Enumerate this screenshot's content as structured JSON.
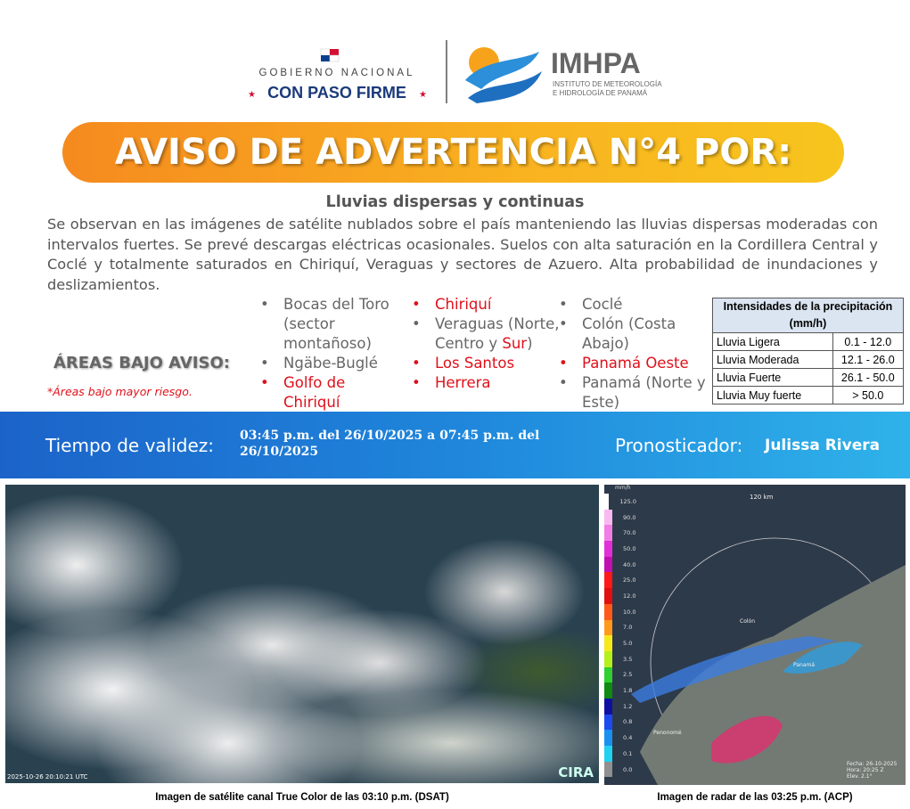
{
  "header": {
    "gov_line1": "GOBIERNO NACIONAL",
    "gov_line2": "CON PASO FIRME",
    "org_name": "IMHPA",
    "org_line1": "INSTITUTO DE METEOROLOGÍA",
    "org_line2": "E HIDROLOGÍA DE PANAMÁ"
  },
  "banner": {
    "title": "AVISO DE ADVERTENCIA N°4 POR:"
  },
  "subtitle": "Lluvias dispersas y continuas",
  "body": "Se observan en las imágenes de satélite nublados sobre el país manteniendo las lluvias dispersas moderadas con intervalos fuertes. Se prevé descargas eléctricas ocasionales. Suelos con alta saturación en la Cordillera Central y Coclé y totalmente saturados en Chiriquí, Veraguas y sectores de Azuero. Alta probabilidad de inundaciones  y deslizamientos.",
  "areas": {
    "label": "ÁREAS BAJO AVISO:",
    "note": "*Áreas bajo mayor riesgo.",
    "columns": [
      {
        "items": [
          {
            "parts": [
              {
                "text": "Bocas del Toro (sector montañoso)",
                "risk": false
              }
            ]
          },
          {
            "parts": [
              {
                "text": "Ngäbe-Buglé",
                "risk": false
              }
            ]
          },
          {
            "parts": [
              {
                "text": "Golfo de Chiriquí",
                "risk": true
              }
            ]
          }
        ]
      },
      {
        "items": [
          {
            "parts": [
              {
                "text": "Chiriquí",
                "risk": true
              }
            ]
          },
          {
            "parts": [
              {
                "text": "Veraguas (Norte, Centro y ",
                "risk": false
              },
              {
                "text": "Sur",
                "risk": true
              },
              {
                "text": ")",
                "risk": false
              }
            ]
          },
          {
            "parts": [
              {
                "text": "Los Santos",
                "risk": true
              }
            ]
          },
          {
            "parts": [
              {
                "text": "Herrera",
                "risk": true
              }
            ]
          }
        ]
      },
      {
        "items": [
          {
            "parts": [
              {
                "text": "Coclé",
                "risk": false
              }
            ]
          },
          {
            "parts": [
              {
                "text": "Colón (Costa Abajo)",
                "risk": false
              }
            ]
          },
          {
            "parts": [
              {
                "text": "Panamá Oeste",
                "risk": true
              }
            ]
          },
          {
            "parts": [
              {
                "text": "Panamá (Norte y Este)",
                "risk": false
              }
            ]
          }
        ]
      }
    ]
  },
  "table": {
    "header": "Intensidades de la precipitación (mm/h)",
    "rows": [
      [
        "Lluvia Ligera",
        "0.1 - 12.0"
      ],
      [
        "Lluvia Moderada",
        "12.1 - 26.0"
      ],
      [
        "Lluvia Fuerte",
        "26.1 - 50.0"
      ],
      [
        "Lluvia Muy fuerte",
        "> 50.0"
      ]
    ]
  },
  "validity": {
    "label": "Tiempo de validez:",
    "value": "03:45 p.m. del 26/10/2025 a 07:45 p.m. del 26/10/2025",
    "forecaster_label": "Pronosticador:",
    "forecaster": "Julissa Rivera"
  },
  "satellite": {
    "timestamp": "2025-10-26 20:10:21 UTC",
    "credit": "CIRA",
    "caption": "Imagen de satélite canal True Color de las 03:10 p.m. (DSAT)"
  },
  "radar": {
    "unit": "mm/h",
    "legend": [
      "125.0",
      "90.0",
      "70.0",
      "50.0",
      "40.0",
      "25.0",
      "12.0",
      "10.0",
      "7.0",
      "5.0",
      "3.5",
      "2.5",
      "1.8",
      "1.2",
      "0.8",
      "0.4",
      "0.1",
      "0.0"
    ],
    "range": "120 km",
    "places": [
      "Colón",
      "Panamá",
      "Penonomé"
    ],
    "info": [
      "Fecha: 26-10-2025",
      "Hora: 20:25 Z",
      "Elev. 2.1°"
    ],
    "caption": "Imagen de radar de las 03:25 p.m. (ACP)"
  }
}
